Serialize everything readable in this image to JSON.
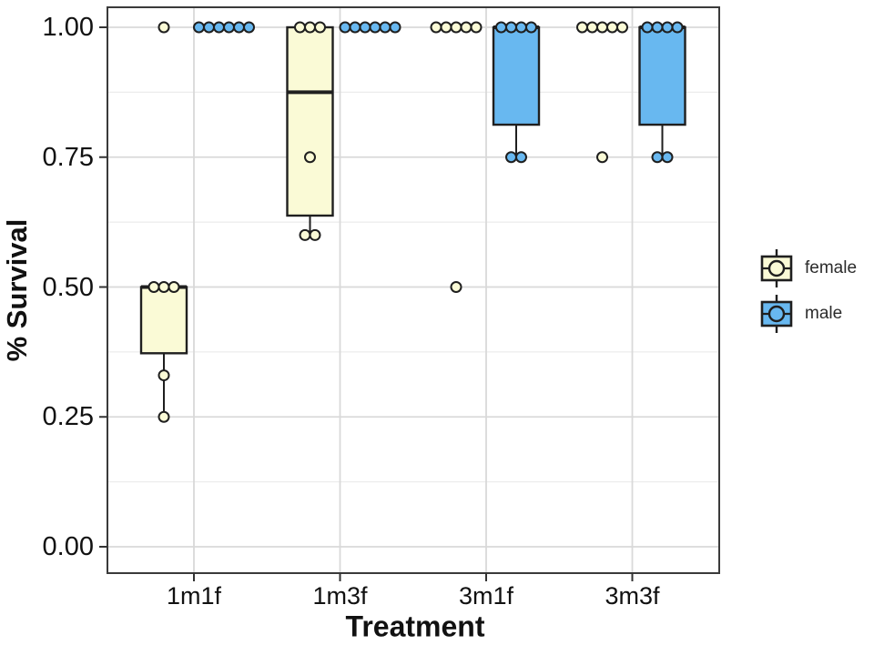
{
  "chart_data": {
    "type": "boxplot",
    "title": "",
    "xlabel": "Treatment",
    "ylabel": "% Survival",
    "categories": [
      "1m1f",
      "1m3f",
      "3m1f",
      "3m3f"
    ],
    "y_ticks": [
      {
        "value": 1.0,
        "label": "1.00"
      },
      {
        "value": 0.75,
        "label": "0.75"
      },
      {
        "value": 0.5,
        "label": "0.50"
      },
      {
        "value": 0.25,
        "label": "0.25"
      },
      {
        "value": 0.0,
        "label": "0.00"
      }
    ],
    "ylim": [
      0,
      1
    ],
    "y_minor_gridlines": [
      0.125,
      0.375,
      0.625,
      0.875
    ],
    "grid": true,
    "legend_position": "right",
    "point_shape": "open-circle-filled",
    "series": [
      {
        "name": "female",
        "fill": "#FAFAD6",
        "stroke": "#1f1f1f",
        "values_by_category": [
          [
            0.25,
            0.33,
            0.5,
            0.5,
            0.5,
            1.0
          ],
          [
            0.6,
            0.6,
            0.75,
            1.0,
            1.0,
            1.0
          ],
          [
            0.5,
            1.0,
            1.0,
            1.0,
            1.0,
            1.0
          ],
          [
            0.75,
            1.0,
            1.0,
            1.0,
            1.0,
            1.0
          ]
        ],
        "boxes_by_category": [
          {
            "q1": 0.3725,
            "median": 0.5,
            "q3": 0.5,
            "whisker_low": 0.25,
            "whisker_high": 0.5,
            "visible": true
          },
          {
            "q1": 0.6375,
            "median": 0.875,
            "q3": 1.0,
            "whisker_low": 0.6,
            "whisker_high": 1.0,
            "visible": true
          },
          {
            "q1": 1.0,
            "median": 1.0,
            "q3": 1.0,
            "whisker_low": 1.0,
            "whisker_high": 1.0,
            "visible": false
          },
          {
            "q1": 1.0,
            "median": 1.0,
            "q3": 1.0,
            "whisker_low": 1.0,
            "whisker_high": 1.0,
            "visible": false
          }
        ]
      },
      {
        "name": "male",
        "fill": "#68B8F0",
        "stroke": "#1f1f1f",
        "values_by_category": [
          [
            1.0,
            1.0,
            1.0,
            1.0,
            1.0,
            1.0
          ],
          [
            1.0,
            1.0,
            1.0,
            1.0,
            1.0,
            1.0
          ],
          [
            0.75,
            0.75,
            1.0,
            1.0,
            1.0,
            1.0
          ],
          [
            0.75,
            0.75,
            1.0,
            1.0,
            1.0,
            1.0
          ]
        ],
        "boxes_by_category": [
          {
            "q1": 1.0,
            "median": 1.0,
            "q3": 1.0,
            "whisker_low": 1.0,
            "whisker_high": 1.0,
            "visible": false
          },
          {
            "q1": 1.0,
            "median": 1.0,
            "q3": 1.0,
            "whisker_low": 1.0,
            "whisker_high": 1.0,
            "visible": false
          },
          {
            "q1": 0.8125,
            "median": 1.0,
            "q3": 1.0,
            "whisker_low": 0.75,
            "whisker_high": 1.0,
            "visible": true
          },
          {
            "q1": 0.8125,
            "median": 1.0,
            "q3": 1.0,
            "whisker_low": 0.75,
            "whisker_high": 1.0,
            "visible": true
          }
        ]
      }
    ],
    "legend": {
      "items": [
        {
          "label": "female",
          "color": "#FAFAD6"
        },
        {
          "label": "male",
          "color": "#68B8F0"
        }
      ]
    },
    "colors": {
      "panel_border": "#3a3a3a",
      "grid_major": "#d9d9d9",
      "grid_minor": "#ececec",
      "tick_mark": "#333333",
      "text": "#111111"
    }
  }
}
